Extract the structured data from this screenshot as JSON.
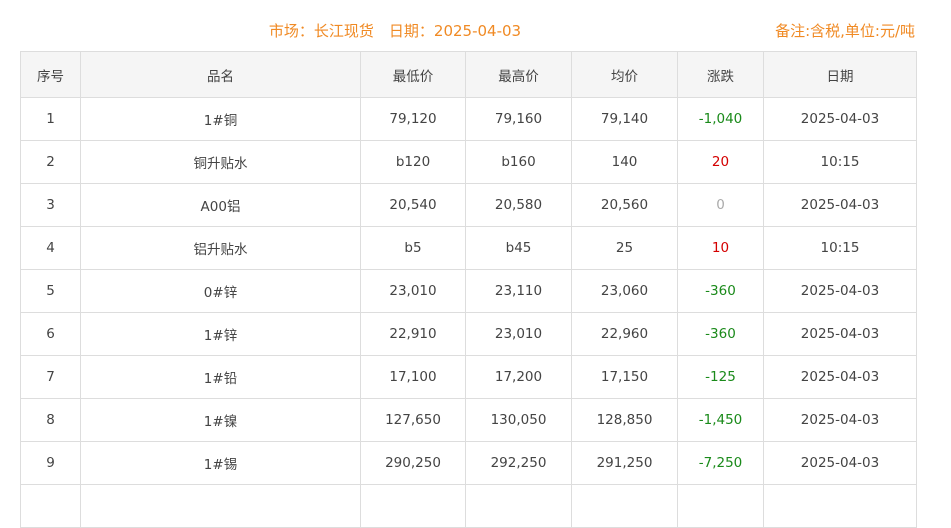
{
  "header": {
    "title": "市场：长江现货　日期：2025-04-03",
    "note": "备注:含税,单位:元/吨"
  },
  "columns": [
    "序号",
    "品名",
    "最低价",
    "最高价",
    "均价",
    "涨跌",
    "日期"
  ],
  "colors": {
    "accent": "#f08a24",
    "down": "#1a8a1a",
    "up": "#d40000",
    "flat": "#aaaaaa"
  },
  "rows": [
    [
      "1",
      "1#铜",
      "79,120",
      "79,160",
      "79,140",
      "-1,040",
      "2025-04-03"
    ],
    [
      "2",
      "铜升贴水",
      "b120",
      "b160",
      "140",
      "20",
      "10:15"
    ],
    [
      "3",
      "A00铝",
      "20,540",
      "20,580",
      "20,560",
      "0",
      "2025-04-03"
    ],
    [
      "4",
      "铝升贴水",
      "b5",
      "b45",
      "25",
      "10",
      "10:15"
    ],
    [
      "5",
      "0#锌",
      "23,010",
      "23,110",
      "23,060",
      "-360",
      "2025-04-03"
    ],
    [
      "6",
      "1#锌",
      "22,910",
      "23,010",
      "22,960",
      "-360",
      "2025-04-03"
    ],
    [
      "7",
      "1#铅",
      "17,100",
      "17,200",
      "17,150",
      "-125",
      "2025-04-03"
    ],
    [
      "8",
      "1#镍",
      "127,650",
      "130,050",
      "128,850",
      "-1,450",
      "2025-04-03"
    ],
    [
      "9",
      "1#锡",
      "290,250",
      "292,250",
      "291,250",
      "-7,250",
      "2025-04-03"
    ]
  ]
}
